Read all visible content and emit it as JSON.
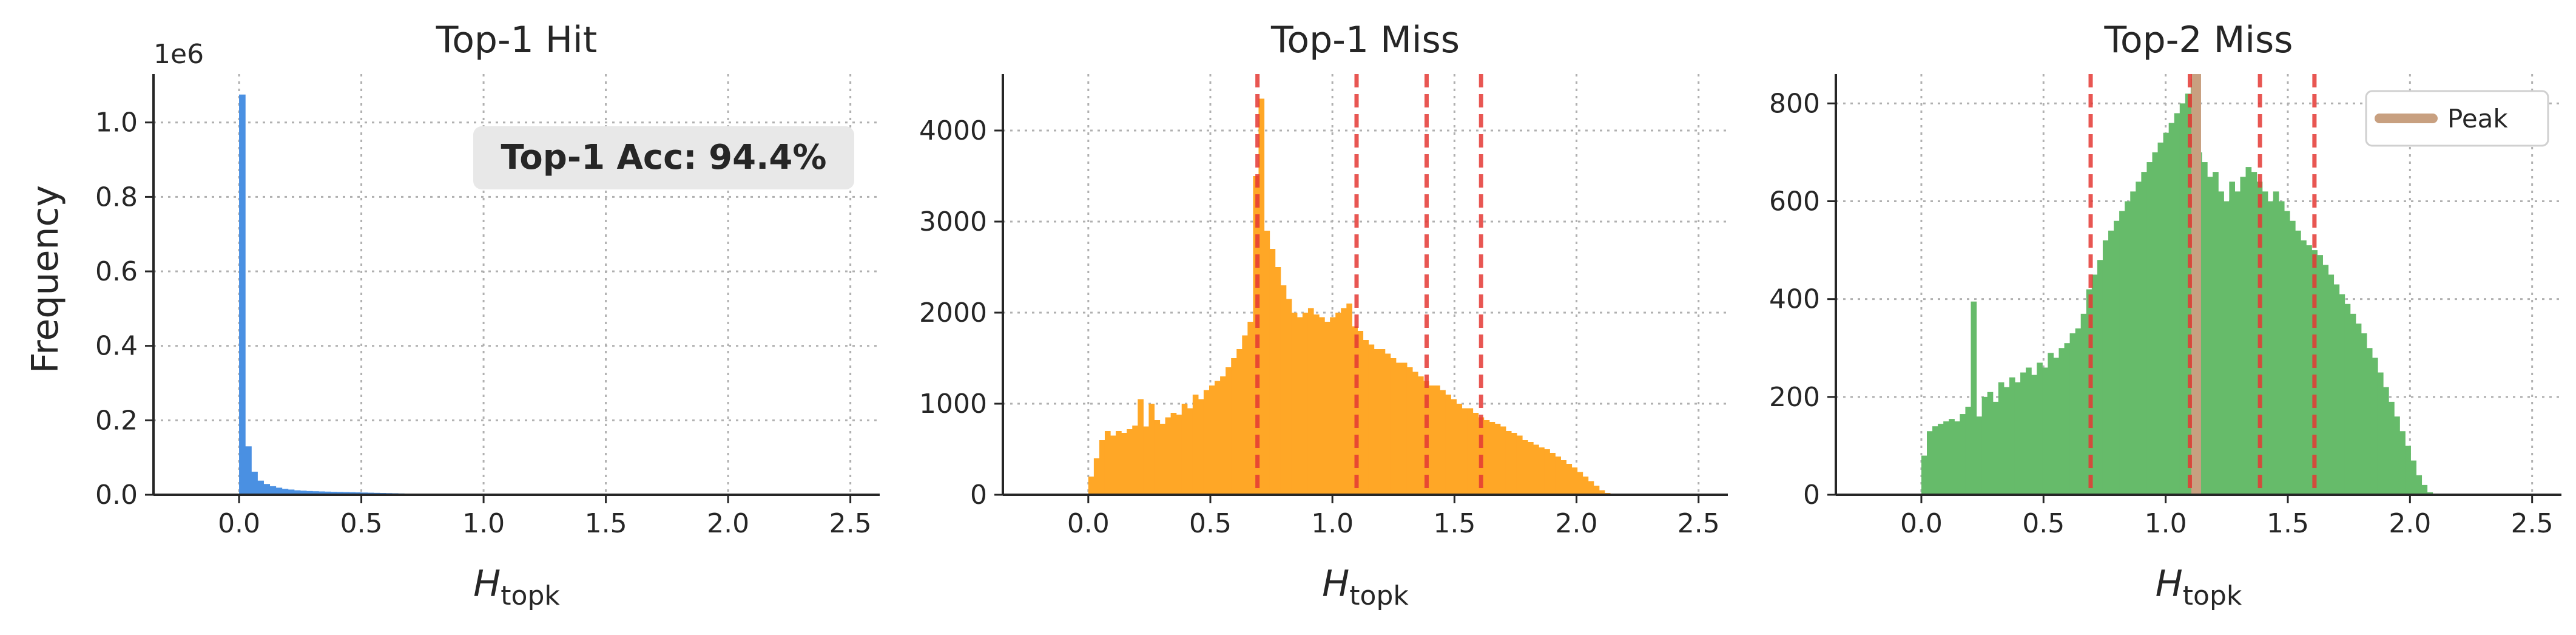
{
  "figure": {
    "ylabel": "Frequency"
  },
  "chart_data": [
    {
      "type": "bar",
      "title": "Top-1 Hit",
      "xlabel_main": "H",
      "xlabel_sub": "topk",
      "ylabel": "Frequency",
      "xlim": [
        -0.35,
        2.62
      ],
      "ylim": [
        0,
        1130000
      ],
      "xticks": [
        0.0,
        0.5,
        1.0,
        1.5,
        2.0,
        2.5
      ],
      "xtick_labels": [
        "0.0",
        "0.5",
        "1.0",
        "1.5",
        "2.0",
        "2.5"
      ],
      "yticks": [
        0,
        200000,
        400000,
        600000,
        800000,
        1000000
      ],
      "ytick_labels": [
        "0.0",
        "0.2",
        "0.4",
        "0.6",
        "0.8",
        "1.0"
      ],
      "y_offset_label": "1e6",
      "grid": true,
      "bin_start": 0.0,
      "bin_width": 0.025,
      "values": [
        1075000,
        130000,
        62000,
        38000,
        29000,
        23000,
        19000,
        16000,
        14000,
        12000,
        11000,
        10000,
        9500,
        9000,
        8500,
        8000,
        7600,
        7200,
        6800,
        6400,
        6000,
        5600,
        5200,
        4800,
        4400,
        4000,
        3600,
        3200,
        2800,
        2400,
        2000,
        1700,
        1400,
        1100,
        900,
        700,
        500,
        350,
        200,
        100
      ],
      "color": "#4a90e2",
      "annotation": "Top-1 Acc: 94.4%",
      "vlines": [],
      "legend": null
    },
    {
      "type": "bar",
      "title": "Top-1 Miss",
      "xlabel_main": "H",
      "xlabel_sub": "topk",
      "xlim": [
        -0.35,
        2.62
      ],
      "ylim": [
        0,
        4620
      ],
      "xticks": [
        0.0,
        0.5,
        1.0,
        1.5,
        2.0,
        2.5
      ],
      "xtick_labels": [
        "0.0",
        "0.5",
        "1.0",
        "1.5",
        "2.0",
        "2.5"
      ],
      "yticks": [
        0,
        1000,
        2000,
        3000,
        4000
      ],
      "ytick_labels": [
        "0",
        "1000",
        "2000",
        "3000",
        "4000"
      ],
      "grid": true,
      "bin_start": 0.0,
      "bin_width": 0.0225,
      "values": [
        200,
        400,
        600,
        700,
        650,
        700,
        680,
        720,
        760,
        1050,
        750,
        1000,
        820,
        780,
        850,
        900,
        880,
        1000,
        950,
        1100,
        1050,
        1150,
        1200,
        1250,
        1300,
        1400,
        1500,
        1600,
        1750,
        1900,
        3500,
        4350,
        2900,
        2700,
        2500,
        2300,
        2150,
        2000,
        1950,
        2000,
        2050,
        1980,
        1950,
        1900,
        1950,
        2000,
        2050,
        2100,
        1850,
        1800,
        1700,
        1650,
        1600,
        1600,
        1550,
        1500,
        1450,
        1450,
        1400,
        1350,
        1300,
        1250,
        1200,
        1200,
        1150,
        1100,
        1050,
        1000,
        950,
        950,
        900,
        850,
        820,
        800,
        780,
        750,
        700,
        680,
        650,
        600,
        580,
        550,
        520,
        500,
        460,
        420,
        380,
        340,
        300,
        250,
        200,
        150,
        100,
        50,
        20
      ],
      "color": "#ffa726",
      "vlines": [
        0.693,
        1.099,
        1.386,
        1.609
      ],
      "vline_color": "#e53935",
      "legend": null
    },
    {
      "type": "bar",
      "title": "Top-2 Miss",
      "xlabel_main": "H",
      "xlabel_sub": "topk",
      "xlim": [
        -0.35,
        2.62
      ],
      "ylim": [
        0,
        860
      ],
      "xticks": [
        0.0,
        0.5,
        1.0,
        1.5,
        2.0,
        2.5
      ],
      "xtick_labels": [
        "0.0",
        "0.5",
        "1.0",
        "1.5",
        "2.0",
        "2.5"
      ],
      "yticks": [
        0,
        200,
        400,
        600,
        800
      ],
      "ytick_labels": [
        "0",
        "200",
        "400",
        "600",
        "800"
      ],
      "grid": true,
      "bin_start": 0.0,
      "bin_width": 0.0225,
      "values": [
        80,
        130,
        140,
        145,
        150,
        155,
        150,
        165,
        180,
        395,
        160,
        200,
        210,
        190,
        230,
        220,
        240,
        230,
        250,
        260,
        245,
        270,
        260,
        290,
        280,
        300,
        310,
        330,
        340,
        370,
        420,
        450,
        480,
        520,
        540,
        560,
        580,
        600,
        620,
        640,
        660,
        680,
        700,
        720,
        740,
        760,
        780,
        800,
        820,
        850,
        700,
        680,
        650,
        660,
        620,
        600,
        640,
        620,
        650,
        670,
        660,
        640,
        620,
        600,
        620,
        600,
        580,
        560,
        540,
        520,
        510,
        500,
        490,
        470,
        450,
        430,
        410,
        390,
        370,
        350,
        330,
        300,
        280,
        250,
        220,
        190,
        160,
        130,
        100,
        70,
        40,
        20,
        5
      ],
      "color": "#66bb6a",
      "vlines": [
        0.693,
        1.099,
        1.386,
        1.609
      ],
      "vline_color": "#e53935",
      "peak": 1.125,
      "peak_color": "#c8a080",
      "legend": {
        "label": "Peak",
        "position": "top-right"
      }
    }
  ]
}
